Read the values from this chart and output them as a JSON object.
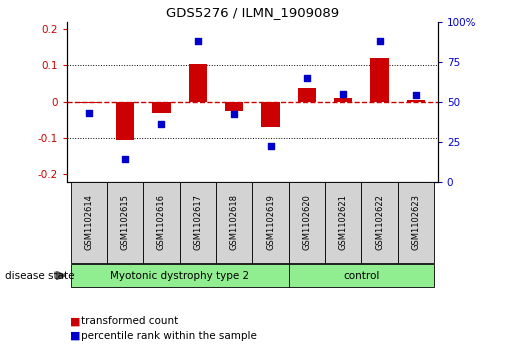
{
  "title": "GDS5276 / ILMN_1909089",
  "samples": [
    "GSM1102614",
    "GSM1102615",
    "GSM1102616",
    "GSM1102617",
    "GSM1102618",
    "GSM1102619",
    "GSM1102620",
    "GSM1102621",
    "GSM1102622",
    "GSM1102623"
  ],
  "bar_values": [
    -0.005,
    -0.105,
    -0.03,
    0.105,
    -0.025,
    -0.07,
    0.038,
    0.01,
    0.12,
    0.005
  ],
  "scatter_values": [
    0.43,
    0.14,
    0.36,
    0.88,
    0.42,
    0.22,
    0.65,
    0.55,
    0.88,
    0.54
  ],
  "bar_color": "#cc0000",
  "scatter_color": "#0000cc",
  "zero_line_color": "#cc0000",
  "dotted_line_color": "#000000",
  "ylim_left": [
    -0.22,
    0.22
  ],
  "ylim_right": [
    0.0,
    1.0
  ],
  "yticks_left": [
    -0.2,
    -0.1,
    0.0,
    0.1,
    0.2
  ],
  "yticks_right": [
    0.0,
    0.25,
    0.5,
    0.75,
    1.0
  ],
  "ytick_labels_right": [
    "0",
    "25",
    "50",
    "75",
    "100%"
  ],
  "ytick_labels_left": [
    "-0.2",
    "-0.1",
    "0",
    "0.1",
    "0.2"
  ],
  "groups": [
    {
      "label": "Myotonic dystrophy type 2",
      "start": 0,
      "end": 6,
      "color": "#90EE90"
    },
    {
      "label": "control",
      "start": 6,
      "end": 10,
      "color": "#90EE90"
    }
  ],
  "disease_state_label": "disease state",
  "legend_bar_label": "transformed count",
  "legend_scatter_label": "percentile rank within the sample",
  "background_color": "#ffffff",
  "plot_bg_color": "#ffffff",
  "tick_box_color": "#d3d3d3",
  "bar_width": 0.5
}
